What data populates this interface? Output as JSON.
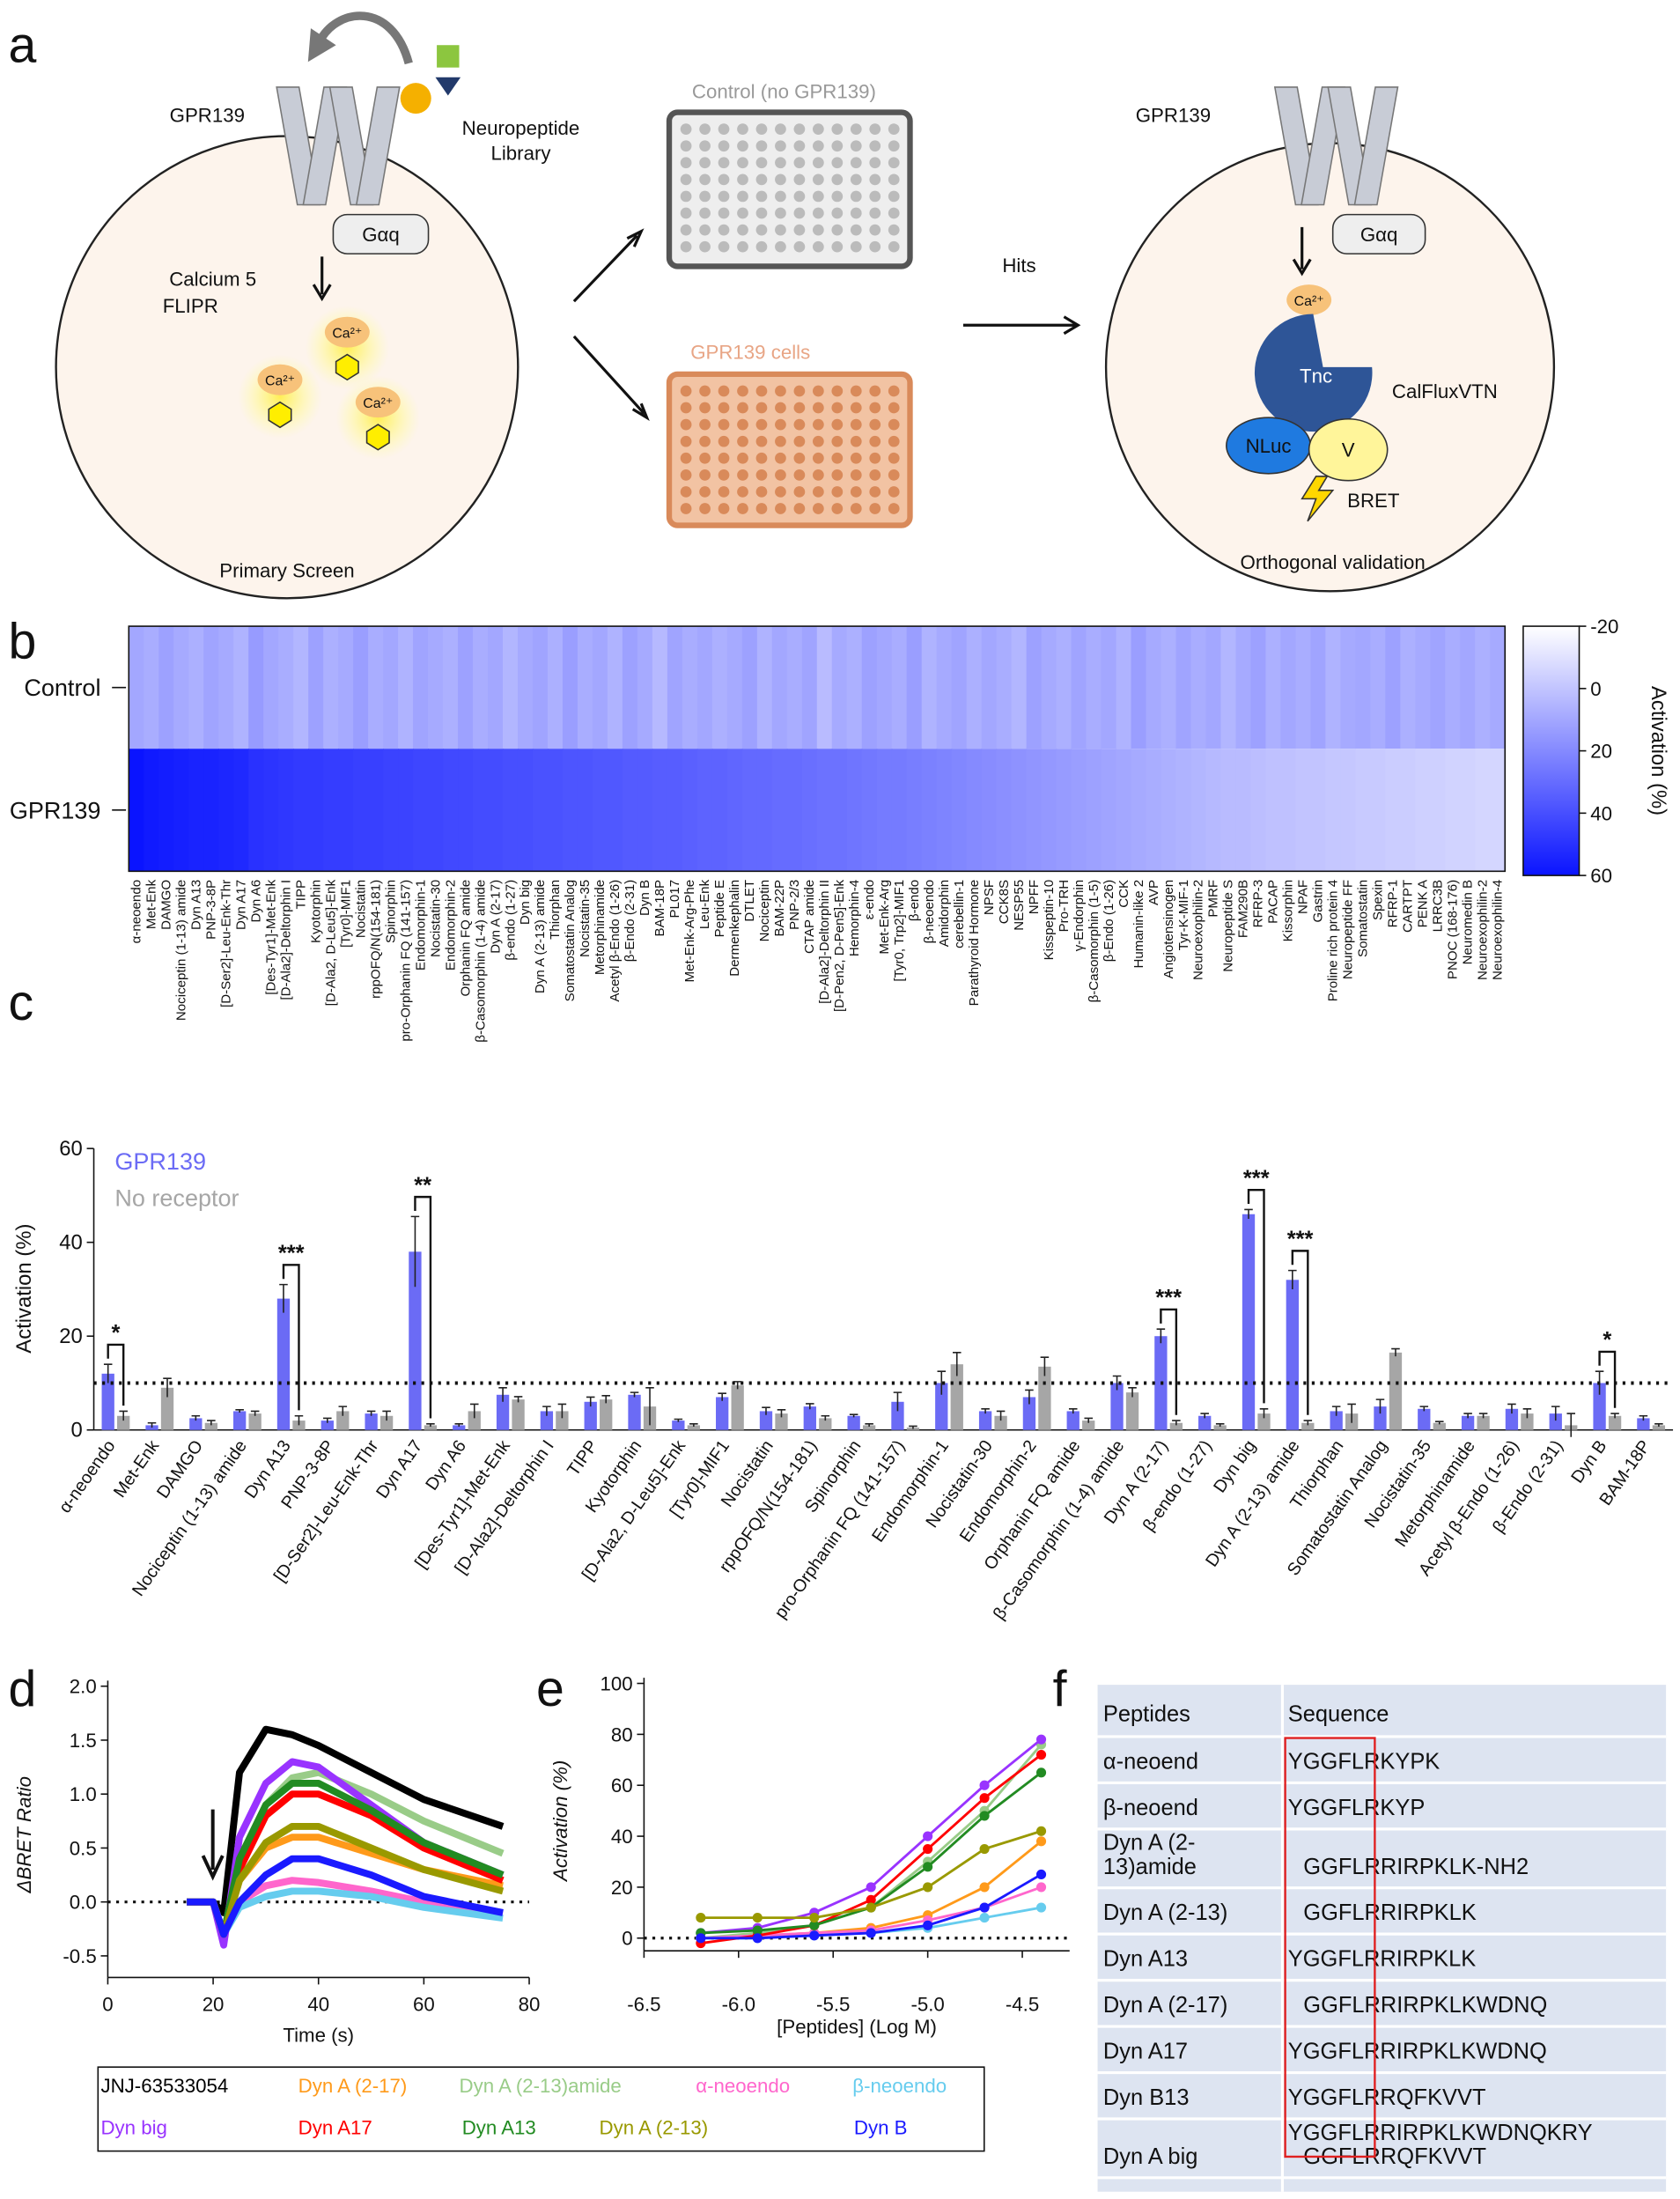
{
  "panel_letters": [
    "a",
    "b",
    "c",
    "d",
    "e",
    "f"
  ],
  "panel_a": {
    "receptor": "GPR139",
    "library": [
      "Neuropeptide",
      "Library"
    ],
    "gprotein": "Gαq",
    "dye": [
      "Calcium 5",
      "FLIPR"
    ],
    "calcium": "Ca²⁺",
    "control_plate": "Control (no GPR139)",
    "cell_plate": "GPR139 cells",
    "hits": "Hits",
    "primary": "Primary Screen",
    "tnc": "Tnc",
    "sensor": "CalFluxVTN",
    "nluc": "NLuc",
    "venus": "V",
    "bret": "BRET",
    "orthogonal": "Orthogonal validation"
  },
  "chart_data": [
    {
      "type": "heatmap",
      "categories": [
        "α-neoendo",
        "Met-Enk",
        "DAMGO",
        "Nociceptin (1-13) amide",
        "Dyn A13",
        "PNP-3-8P",
        "[D-Ser2]-Leu-Enk-Thr",
        "Dyn A17",
        "Dyn A6",
        "[Des-Tyr1]-Met-Enk",
        "[D-Ala2]-Deltorphin I",
        "TIPP",
        "Kyotorphin",
        "[D-Ala2, D-Leu5]-Enk",
        "[Tyr0]-MIF1",
        "Nocistatin",
        "rppOFQ/N(154-181)",
        "Spinorphin",
        "pro-Orphanin FQ (141-157)",
        "Endomorphin-1",
        "Nocistatin-30",
        "Endomorphin-2",
        "Orphanin FQ amide",
        "β-Casomorphin (1-4) amide",
        "Dyn A (2-17)",
        "β-endo (1-27)",
        "Dyn big",
        "Dyn A (2-13) amide",
        "Thiorphan",
        "Somatostatin Analog",
        "Nocistatin-35",
        "Metorphinamide",
        "Acetyl β-Endo (1-26)",
        "β-Endo (2-31)",
        "Dyn B",
        "BAM-18P",
        "PL017",
        "Met-Enk-Arg-Phe",
        "Leu-Enk",
        "Peptide E",
        "Dermenkephalin",
        "DTLET",
        "Nociceptin",
        "BAM-22P",
        "PNP-2/3",
        "CTAP amide",
        "[D-Ala2]-Deltorphin II",
        "[D-Pen2, D-Pen5]-Enk",
        "Hemorphin-4",
        "ε-endo",
        "Met-Enk-Arg",
        "[Tyr0, Trp2]-MIF1",
        "β-endo",
        "β-neoendo",
        "Amidorphin",
        "cerebellin-1",
        "Parathyroid Hormone",
        "NPSF",
        "CCK8S",
        "NESP55",
        "NPFF",
        "Kisspeptin-10",
        "Pro-TRH",
        "γ-Endorphin",
        "β-Casomorphin (1-5)",
        "β-Endo (1-26)",
        "CCK",
        "Humanin-like 2",
        "AVP",
        "Angiotensinogen",
        "Tyr-K-MIF-1",
        "Neuroexophilin-2",
        "PMRF",
        "Neuropeptide S",
        "FAM290B",
        "RFRP-3",
        "PACAP",
        "Kissorphin",
        "NPAF",
        "Gastrin",
        "Proline rich protein 4",
        "Neuropeptide FF",
        "Somatostatin",
        "Spexin",
        "RFRP-1",
        "CARTPT",
        "PENK A",
        "LRRC3B",
        "PNOC (168-176)",
        "Neuromedin B",
        "Neuroexophilin-2",
        "Neuroexophilin-4"
      ],
      "series": [
        {
          "name": "Control",
          "values": [
            10,
            8,
            12,
            9,
            7,
            11,
            9,
            6,
            14,
            10,
            8,
            5,
            12,
            7,
            9,
            13,
            8,
            10,
            6,
            11,
            9,
            7,
            12,
            8,
            10,
            5,
            9,
            11,
            7,
            13,
            8,
            10,
            6,
            12,
            9,
            4,
            11,
            8,
            10,
            7,
            9,
            12,
            6,
            10,
            8,
            11,
            3,
            9,
            7,
            12,
            10,
            8,
            13,
            6,
            9,
            11,
            7,
            10,
            8,
            5,
            12,
            9,
            7,
            11,
            8,
            10,
            6,
            13,
            9,
            7,
            11,
            8,
            10,
            5,
            9,
            12,
            7,
            10,
            8,
            11,
            6,
            9,
            10,
            8,
            12,
            7,
            9,
            11,
            8,
            10,
            7,
            9
          ]
        },
        {
          "name": "GPR139",
          "values": [
            60,
            58,
            57,
            56,
            55,
            55,
            54,
            53,
            50,
            49,
            48,
            47,
            47,
            46,
            46,
            45,
            45,
            44,
            44,
            43,
            43,
            42,
            42,
            41,
            41,
            40,
            40,
            39,
            39,
            38,
            38,
            37,
            37,
            36,
            36,
            35,
            35,
            34,
            33,
            33,
            32,
            31,
            31,
            30,
            30,
            29,
            28,
            28,
            27,
            26,
            25,
            25,
            24,
            23,
            22,
            21,
            20,
            19,
            18,
            17,
            16,
            15,
            14,
            13,
            12,
            11,
            10,
            9,
            8,
            7,
            6,
            5,
            4,
            3,
            3,
            2,
            1,
            1,
            0,
            0,
            -1,
            -1,
            -2,
            -2,
            -3,
            -3,
            -4,
            -4,
            -5,
            -5,
            -6,
            -6
          ]
        }
      ],
      "clim": [
        -20,
        60
      ],
      "cticks": [
        -20,
        0,
        20,
        40,
        60
      ],
      "colorbar_label": "Activation (%)",
      "colors": [
        "#ffffff",
        "#0a14ff"
      ]
    },
    {
      "type": "bar",
      "categories": [
        "α-neoendo",
        "Met-Enk",
        "DAMGO",
        "Nociceptin (1-13) amide",
        "Dyn A13",
        "PNP-3-8P",
        "[D-Ser2]-Leu-Enk-Thr",
        "Dyn A17",
        "Dyn A6",
        "[Des-Tyr1]-Met-Enk",
        "[D-Ala2]-Deltorphin I",
        "TIPP",
        "Kyotorphin",
        "[D-Ala2, D-Leu5]-Enk",
        "[Tyr0]-MIF1",
        "Nocistatin",
        "rppOFQ/N(154-181)",
        "Spinorphin",
        "pro-Orphanin FQ (141-157)",
        "Endomorphin-1",
        "Nocistatin-30",
        "Endomorphin-2",
        "Orphanin FQ amide",
        "β-Casomorphin (1-4) amide",
        "Dyn A (2-17)",
        "β-endo (1-27)",
        "Dyn big",
        "Dyn A (2-13) amide",
        "Thiorphan",
        "Somatostatin Analog",
        "Nocistatin-35",
        "Metorphinamide",
        "Acetyl β-Endo (1-26)",
        "β-Endo (2-31)",
        "Dyn B",
        "BAM-18P"
      ],
      "series": [
        {
          "name": "GPR139",
          "color": "#6b6bf5",
          "values": [
            12,
            1,
            2.5,
            4,
            28,
            2,
            3.5,
            38,
            1,
            7.5,
            4,
            6,
            7.5,
            2,
            7,
            4,
            5,
            3,
            6,
            10,
            4,
            7,
            4,
            10,
            20,
            3,
            46,
            32,
            4,
            5,
            4.5,
            3,
            4.5,
            3.5,
            10,
            2.5
          ],
          "errors": [
            2,
            0.5,
            0.5,
            0.3,
            3,
            0.5,
            0.5,
            7.5,
            0.3,
            1.5,
            1,
            1,
            0.5,
            0.3,
            0.8,
            0.8,
            0.6,
            0.3,
            2,
            2.5,
            0.5,
            1.5,
            0.5,
            1.5,
            1.5,
            0.5,
            1,
            2,
            1,
            1.5,
            0.5,
            0.5,
            1,
            1.5,
            2.5,
            0.5
          ]
        },
        {
          "name": "No receptor",
          "color": "#a6a6a6",
          "values": [
            3,
            9,
            1.5,
            3.5,
            2,
            4,
            3,
            1,
            4,
            6.5,
            4,
            6.5,
            5,
            1,
            9.5,
            3.5,
            2.5,
            1,
            0.5,
            14,
            3,
            13.5,
            2,
            8,
            1.5,
            1,
            3.5,
            1.5,
            3.5,
            16.5,
            1.5,
            3,
            3.5,
            1,
            3,
            1
          ],
          "errors": [
            1,
            2,
            0.5,
            0.5,
            1,
            1,
            1,
            0.3,
            1.5,
            0.6,
            1.5,
            0.8,
            4,
            0.3,
            0.8,
            0.8,
            0.5,
            0.3,
            0.3,
            2.5,
            1,
            2,
            0.5,
            1,
            0.5,
            0.3,
            1,
            0.5,
            2,
            0.8,
            0.3,
            0.5,
            1,
            2.5,
            0.5,
            0.3
          ]
        }
      ],
      "ylim": [
        0,
        60
      ],
      "yticks": [
        0,
        20,
        40,
        60
      ],
      "ylabel": "Activation (%)",
      "threshold": 10,
      "annotations": [
        {
          "category": "α-neoendo",
          "text": "*"
        },
        {
          "category": "Dyn A13",
          "text": "***"
        },
        {
          "category": "Dyn A17",
          "text": "**"
        },
        {
          "category": "Dyn A (2-17)",
          "text": "***"
        },
        {
          "category": "Dyn big",
          "text": "***"
        },
        {
          "category": "Dyn A (2-13) amide",
          "text": "***"
        },
        {
          "category": "Dyn B",
          "text": "*"
        }
      ]
    },
    {
      "type": "line",
      "x": [
        15,
        20,
        22,
        25,
        30,
        35,
        40,
        50,
        60,
        75
      ],
      "series": [
        {
          "name": "JNJ-63533054",
          "color": "#000000",
          "values": [
            0,
            0,
            -0.1,
            1.2,
            1.6,
            1.55,
            1.45,
            1.2,
            0.95,
            0.7
          ]
        },
        {
          "name": "Dyn A (2-17)",
          "color": "#ff9a1a",
          "values": [
            0,
            0,
            -0.3,
            0.2,
            0.5,
            0.6,
            0.6,
            0.45,
            0.3,
            0.15
          ]
        },
        {
          "name": "Dyn A (2-13)amide",
          "color": "#99cc88",
          "values": [
            0,
            0,
            -0.3,
            0.4,
            0.9,
            1.15,
            1.2,
            1.0,
            0.75,
            0.45
          ]
        },
        {
          "name": "α-neoendo",
          "color": "#ff66cc",
          "values": [
            0,
            0,
            -0.3,
            0,
            0.15,
            0.2,
            0.18,
            0.1,
            0,
            -0.1
          ]
        },
        {
          "name": "β-neoendo",
          "color": "#66ccee",
          "values": [
            0,
            0,
            -0.3,
            -0.05,
            0.05,
            0.1,
            0.1,
            0.05,
            -0.05,
            -0.15
          ]
        },
        {
          "name": "Dyn big",
          "color": "#9933ff",
          "values": [
            0,
            0,
            -0.4,
            0.6,
            1.1,
            1.3,
            1.25,
            0.9,
            0.55,
            0.25
          ]
        },
        {
          "name": "Dyn A17",
          "color": "#ff0000",
          "values": [
            0,
            0,
            -0.3,
            0.3,
            0.8,
            1.0,
            1.0,
            0.8,
            0.5,
            0.2
          ]
        },
        {
          "name": "Dyn A13",
          "color": "#228b22",
          "values": [
            0,
            0,
            -0.3,
            0.4,
            0.9,
            1.1,
            1.1,
            0.85,
            0.55,
            0.25
          ]
        },
        {
          "name": "Dyn A (2-13)",
          "color": "#999900",
          "values": [
            0,
            0,
            -0.3,
            0.2,
            0.55,
            0.7,
            0.7,
            0.5,
            0.3,
            0.1
          ]
        },
        {
          "name": "Dyn B",
          "color": "#1a1aff",
          "values": [
            0,
            0,
            -0.3,
            0,
            0.25,
            0.4,
            0.4,
            0.25,
            0.05,
            -0.1
          ]
        }
      ],
      "xlim": [
        0,
        80
      ],
      "xticks": [
        0,
        20,
        40,
        60,
        80
      ],
      "ylim": [
        -0.7,
        2.0
      ],
      "yticks": [
        -0.5,
        {
          "value": 0,
          "label": "0.0"
        },
        0.5,
        {
          "value": 1,
          "label": "1.0"
        },
        1.5,
        {
          "value": 2,
          "label": "2.0"
        }
      ],
      "xlabel": "Time (s)",
      "ylabel": "ΔBRET Ratio"
    },
    {
      "type": "dose",
      "x": [
        -6.2,
        -5.9,
        -5.6,
        -5.3,
        -5.0,
        -4.7,
        -4.4
      ],
      "series": [
        {
          "color": "#ff9a1a",
          "values": [
            0,
            1,
            2,
            4,
            9,
            20,
            38
          ]
        },
        {
          "color": "#99cc88",
          "values": [
            0,
            2,
            5,
            12,
            30,
            50,
            76
          ]
        },
        {
          "color": "#ff66cc",
          "values": [
            0,
            1,
            2,
            3,
            7,
            12,
            20
          ]
        },
        {
          "color": "#66ccee",
          "values": [
            0,
            0,
            1,
            2,
            4,
            8,
            12
          ]
        },
        {
          "color": "#9933ff",
          "values": [
            2,
            4,
            10,
            20,
            40,
            60,
            78
          ]
        },
        {
          "color": "#ff0000",
          "values": [
            -2,
            1,
            5,
            15,
            35,
            55,
            72
          ]
        },
        {
          "color": "#228b22",
          "values": [
            2,
            3,
            5,
            12,
            28,
            48,
            65
          ]
        },
        {
          "color": "#999900",
          "values": [
            8,
            8,
            8,
            12,
            20,
            35,
            42
          ]
        },
        {
          "color": "#1a1aff",
          "values": [
            0,
            0,
            1,
            2,
            5,
            12,
            25
          ]
        }
      ],
      "xlim": [
        -6.5,
        -4.25
      ],
      "xticks": [
        -6.5,
        {
          "value": -6,
          "label": "-6.0"
        },
        -5.5,
        {
          "value": -5,
          "label": "-5.0"
        },
        -4.5
      ],
      "ylim": [
        -5,
        100
      ],
      "yticks": [
        0,
        20,
        40,
        60,
        80,
        100
      ],
      "xlabel": "[Peptides] (Log M)",
      "ylabel": "Activation (%)"
    }
  ],
  "table": {
    "header": [
      "Peptides",
      "Sequence"
    ],
    "rows": [
      {
        "peptide": [
          "α-neoend"
        ],
        "sequence": [
          "YGGFLRKYPK"
        ]
      },
      {
        "peptide": [
          "β-neoend"
        ],
        "sequence": [
          "YGGFLRKYP"
        ]
      },
      {
        "peptide": [
          "Dyn A (2-",
          "13)amide"
        ],
        "sequence": [
          "GGFLRRIRPKLK-NH2"
        ]
      },
      {
        "peptide": [
          "Dyn A (2-13)"
        ],
        "sequence": [
          "GGFLRRIRPKLK"
        ]
      },
      {
        "peptide": [
          "Dyn A13"
        ],
        "sequence": [
          "YGGFLRRIRPKLK"
        ]
      },
      {
        "peptide": [
          "Dyn A (2-17)"
        ],
        "sequence": [
          "GGFLRRIRPKLKWDNQ"
        ]
      },
      {
        "peptide": [
          "Dyn A17"
        ],
        "sequence": [
          "YGGFLRRIRPKLKWDNQ"
        ]
      },
      {
        "peptide": [
          "Dyn B13"
        ],
        "sequence": [
          "YGGFLRRQFKVVT"
        ]
      },
      {
        "peptide": [
          "Dyn A big"
        ],
        "sequence": [
          "YGGFLRRIRPKLKWDNQKRY",
          "GGFLRRQFKVVT"
        ]
      }
    ]
  }
}
